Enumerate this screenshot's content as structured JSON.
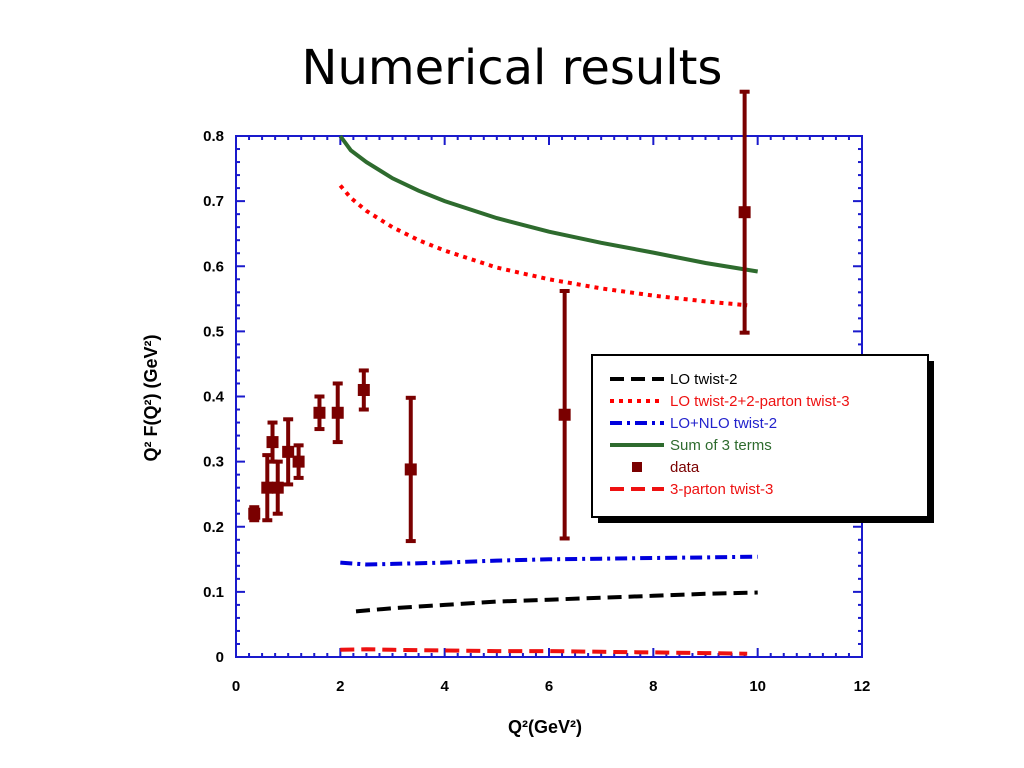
{
  "slide": {
    "title": "Numerical results"
  },
  "chart_data": {
    "type": "line",
    "xlabel": "Q²(GeV²)",
    "ylabel": "Q² F(Q²) (GeV²)",
    "xlim": [
      0,
      12
    ],
    "ylim": [
      0,
      0.8
    ],
    "x_ticks": [
      "0",
      "2",
      "4",
      "6",
      "8",
      "10",
      "12"
    ],
    "y_ticks": [
      "0",
      "0.1",
      "0.2",
      "0.3",
      "0.4",
      "0.5",
      "0.6",
      "0.7",
      "0.8"
    ],
    "grid": false,
    "legend_position": "right",
    "series": [
      {
        "name": "LO twist-2",
        "color": "#000000",
        "style": "dash",
        "points": [
          [
            2.3,
            0.07
          ],
          [
            3,
            0.075
          ],
          [
            4,
            0.08
          ],
          [
            5,
            0.085
          ],
          [
            6,
            0.088
          ],
          [
            7,
            0.091
          ],
          [
            8,
            0.094
          ],
          [
            9,
            0.097
          ],
          [
            10,
            0.099
          ]
        ]
      },
      {
        "name": "LO twist-2+2-parton twist-3",
        "color": "#ff0000",
        "style": "dot",
        "points": [
          [
            2.0,
            0.724
          ],
          [
            2.2,
            0.705
          ],
          [
            2.5,
            0.685
          ],
          [
            3,
            0.66
          ],
          [
            3.5,
            0.64
          ],
          [
            4,
            0.624
          ],
          [
            5,
            0.598
          ],
          [
            6,
            0.58
          ],
          [
            7,
            0.566
          ],
          [
            8,
            0.555
          ],
          [
            9,
            0.546
          ],
          [
            9.8,
            0.54
          ]
        ]
      },
      {
        "name": "LO+NLO twist-2",
        "color": "#0000dd",
        "style": "dashdot",
        "points": [
          [
            2,
            0.145
          ],
          [
            2.5,
            0.142
          ],
          [
            3,
            0.143
          ],
          [
            4,
            0.145
          ],
          [
            5,
            0.148
          ],
          [
            6,
            0.15
          ],
          [
            7,
            0.151
          ],
          [
            8,
            0.152
          ],
          [
            9,
            0.153
          ],
          [
            10,
            0.154
          ]
        ]
      },
      {
        "name": "Sum of 3 terms",
        "color": "#2e6b2e",
        "style": "solid",
        "points": [
          [
            2.0,
            0.8
          ],
          [
            2.2,
            0.778
          ],
          [
            2.5,
            0.76
          ],
          [
            3,
            0.735
          ],
          [
            3.5,
            0.716
          ],
          [
            4,
            0.7
          ],
          [
            5,
            0.674
          ],
          [
            6,
            0.653
          ],
          [
            7,
            0.636
          ],
          [
            8,
            0.621
          ],
          [
            9,
            0.605
          ],
          [
            10,
            0.592
          ]
        ]
      },
      {
        "name": "data",
        "color": "#7a0000",
        "style": "marker",
        "points": [
          {
            "x": 0.35,
            "y": 0.22,
            "err": 0.01
          },
          {
            "x": 0.6,
            "y": 0.26,
            "err": 0.05
          },
          {
            "x": 0.7,
            "y": 0.33,
            "err": 0.03
          },
          {
            "x": 0.8,
            "y": 0.26,
            "err": 0.04
          },
          {
            "x": 1.0,
            "y": 0.315,
            "err": 0.05
          },
          {
            "x": 1.2,
            "y": 0.3,
            "err": 0.025
          },
          {
            "x": 1.6,
            "y": 0.375,
            "err": 0.025
          },
          {
            "x": 1.95,
            "y": 0.375,
            "err": 0.045
          },
          {
            "x": 2.45,
            "y": 0.41,
            "err": 0.03
          },
          {
            "x": 3.35,
            "y": 0.288,
            "err": 0.11
          },
          {
            "x": 6.3,
            "y": 0.372,
            "err": 0.19
          },
          {
            "x": 9.75,
            "y": 0.683,
            "err": 0.185
          }
        ]
      },
      {
        "name": "3-parton twist-3",
        "color": "#ee1111",
        "style": "dash",
        "points": [
          [
            2,
            0.011
          ],
          [
            2.5,
            0.012
          ],
          [
            3,
            0.011
          ],
          [
            4,
            0.01
          ],
          [
            5,
            0.009
          ],
          [
            6,
            0.009
          ],
          [
            7,
            0.008
          ],
          [
            8,
            0.007
          ],
          [
            9,
            0.006
          ],
          [
            9.8,
            0.005
          ]
        ]
      }
    ]
  }
}
